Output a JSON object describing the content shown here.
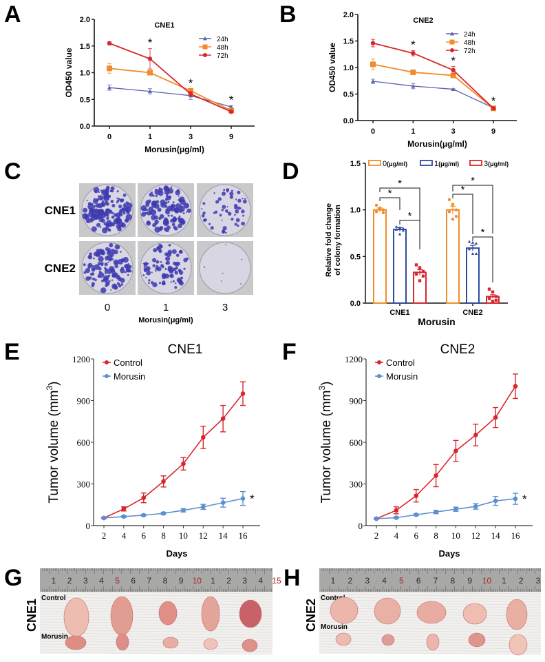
{
  "panels": {
    "A": "A",
    "B": "B",
    "C": "C",
    "D": "D",
    "E": "E",
    "F": "F",
    "G": "G",
    "H": "H"
  },
  "chart_data": [
    {
      "id": "A",
      "type": "line",
      "title": "CNE1",
      "xlabel": "Morusin(μg/ml)",
      "ylabel": "OD450 value",
      "categories": [
        "0",
        "1",
        "3",
        "9"
      ],
      "ylim": [
        0,
        2.0
      ],
      "yticks": [
        "0.0",
        "0.5",
        "1.0",
        "1.5",
        "2.0"
      ],
      "legend": "top-right",
      "series": [
        {
          "name": "24h",
          "color": "#5b62b0",
          "marker": "triangle",
          "values": [
            0.72,
            0.65,
            0.57,
            0.36
          ],
          "errors": [
            0.05,
            0.05,
            0.07,
            0.02
          ]
        },
        {
          "name": "48h",
          "color": "#f28c28",
          "marker": "square",
          "values": [
            1.08,
            1.0,
            0.66,
            0.29
          ],
          "errors": [
            0.09,
            0.03,
            0.04,
            0.03
          ]
        },
        {
          "name": "72h",
          "color": "#d7262d",
          "marker": "circle",
          "values": [
            1.55,
            1.26,
            0.6,
            0.27
          ],
          "errors": [
            0.03,
            0.19,
            0.05,
            0.02
          ]
        }
      ],
      "annotations": [
        {
          "text": "*",
          "x": "1"
        },
        {
          "text": "*",
          "x": "3"
        },
        {
          "text": "*",
          "x": "9"
        }
      ]
    },
    {
      "id": "B",
      "type": "line",
      "title": "CNE2",
      "xlabel": "Morusin(μg/ml)",
      "ylabel": "OD450 value",
      "categories": [
        "0",
        "1",
        "3",
        "9"
      ],
      "ylim": [
        0,
        2.0
      ],
      "yticks": [
        "0.0",
        "0.5",
        "1.0",
        "1.5",
        "2.0"
      ],
      "legend": "top-right",
      "series": [
        {
          "name": "24h",
          "color": "#5b62b0",
          "marker": "triangle",
          "values": [
            0.74,
            0.65,
            0.59,
            0.24
          ],
          "errors": [
            0.04,
            0.05,
            0.01,
            0.02
          ]
        },
        {
          "name": "48h",
          "color": "#f28c28",
          "marker": "square",
          "values": [
            1.06,
            0.91,
            0.85,
            0.23
          ],
          "errors": [
            0.1,
            0.03,
            0.02,
            0.02
          ]
        },
        {
          "name": "72h",
          "color": "#d7262d",
          "marker": "circle",
          "values": [
            1.46,
            1.27,
            0.95,
            0.23
          ],
          "errors": [
            0.07,
            0.05,
            0.07,
            0.02
          ]
        }
      ],
      "annotations": [
        {
          "text": "*",
          "x": "1"
        },
        {
          "text": "*",
          "x": "3"
        },
        {
          "text": "*",
          "x": "9"
        }
      ]
    },
    {
      "id": "D",
      "type": "bar",
      "title": "",
      "xlabel": "Morusin",
      "ylabel": "Relative fold change of colony formation",
      "ylabel_lines": [
        "Relative fold change",
        "of colony formation"
      ],
      "categories": [
        "CNE1",
        "CNE2"
      ],
      "ylim": [
        0,
        1.5
      ],
      "yticks": [
        "0.0",
        "0.5",
        "1.0",
        "1.5"
      ],
      "legend": "top",
      "series": [
        {
          "name": "0",
          "unit": "(μg/ml)",
          "color": "#f28c28",
          "marker": "circle",
          "values": [
            1.0,
            1.0
          ],
          "errors": [
            0.02,
            0.04
          ],
          "points": [
            [
              1.05,
              1.02,
              1.0,
              0.98,
              0.97,
              1.01
            ],
            [
              1.11,
              1.06,
              1.0,
              0.98,
              0.93,
              0.9
            ]
          ]
        },
        {
          "name": "1",
          "unit": "(μg/ml)",
          "color": "#2e4a9e",
          "marker": "triangle",
          "values": [
            0.79,
            0.59
          ],
          "errors": [
            0.02,
            0.03
          ],
          "points": [
            [
              0.82,
              0.81,
              0.8,
              0.79,
              0.78,
              0.74
            ],
            [
              0.66,
              0.65,
              0.64,
              0.58,
              0.53,
              0.53
            ]
          ]
        },
        {
          "name": "3",
          "unit": "(μg/ml)",
          "color": "#d7262d",
          "marker": "square",
          "values": [
            0.33,
            0.07
          ],
          "errors": [
            0.03,
            0.02
          ],
          "points": [
            [
              0.41,
              0.38,
              0.34,
              0.31,
              0.29,
              0.24
            ],
            [
              0.15,
              0.12,
              0.07,
              0.05,
              0.03,
              0.02
            ]
          ]
        }
      ],
      "annotations": [
        {
          "text": "*",
          "from": "0",
          "to": "1",
          "group": "CNE1"
        },
        {
          "text": "*",
          "from": "0",
          "to": "3",
          "group": "CNE1"
        },
        {
          "text": "*",
          "from": "1",
          "to": "3",
          "group": "CNE1"
        },
        {
          "text": "*",
          "from": "0",
          "to": "1",
          "group": "CNE2"
        },
        {
          "text": "*",
          "from": "0",
          "to": "3",
          "group": "CNE2"
        },
        {
          "text": "*",
          "from": "1",
          "to": "3",
          "group": "CNE2"
        }
      ]
    },
    {
      "id": "E",
      "type": "line",
      "title": "CNE1",
      "xlabel": "Days",
      "ylabel": "Tumor volume (mm",
      "ylabel_sup": "3",
      "ylabel_close": ")",
      "x": [
        2,
        4,
        6,
        8,
        10,
        12,
        14,
        16
      ],
      "xticks": [
        "2",
        "4",
        "6",
        "8",
        "10",
        "12",
        "14",
        "16"
      ],
      "ylim": [
        0,
        1200
      ],
      "yticks": [
        "0",
        "300",
        "600",
        "900",
        "1200"
      ],
      "legend": "top-left",
      "series": [
        {
          "name": "Control",
          "color": "#d7262d",
          "values": [
            55,
            120,
            200,
            318,
            445,
            635,
            770,
            950
          ],
          "errors": [
            5,
            15,
            35,
            40,
            45,
            80,
            95,
            85
          ]
        },
        {
          "name": "Morusin",
          "color": "#5b8fcf",
          "values": [
            55,
            65,
            75,
            88,
            110,
            135,
            165,
            195
          ],
          "errors": [
            5,
            5,
            6,
            8,
            12,
            18,
            32,
            50
          ]
        }
      ],
      "annotations": [
        {
          "text": "*",
          "x": 16,
          "series": "Morusin"
        }
      ]
    },
    {
      "id": "F",
      "type": "line",
      "title": "CNE2",
      "xlabel": "Days",
      "ylabel": "Tumor volume (mm",
      "ylabel_sup": "3",
      "ylabel_close": ")",
      "x": [
        2,
        4,
        6,
        8,
        10,
        12,
        14,
        16
      ],
      "xticks": [
        "2",
        "4",
        "6",
        "8",
        "10",
        "12",
        "14",
        "16"
      ],
      "ylim": [
        0,
        1200
      ],
      "yticks": [
        "0",
        "300",
        "600",
        "900",
        "1200"
      ],
      "legend": "top-left",
      "series": [
        {
          "name": "Control",
          "color": "#d7262d",
          "values": [
            50,
            110,
            215,
            360,
            538,
            652,
            778,
            1003
          ],
          "errors": [
            5,
            25,
            45,
            80,
            75,
            78,
            72,
            88
          ]
        },
        {
          "name": "Morusin",
          "color": "#5b8fcf",
          "values": [
            50,
            57,
            78,
            98,
            118,
            138,
            178,
            193
          ],
          "errors": [
            5,
            5,
            6,
            12,
            15,
            20,
            32,
            40
          ]
        }
      ],
      "annotations": [
        {
          "text": "*",
          "x": 16,
          "series": "Morusin"
        }
      ]
    }
  ],
  "colony": {
    "rows": [
      "CNE1",
      "CNE2"
    ],
    "cols": [
      "0",
      "1",
      "3"
    ],
    "xlabel": "Morusin(μg/ml)",
    "density": [
      [
        0.85,
        0.75,
        0.3
      ],
      [
        0.7,
        0.5,
        0.02
      ]
    ]
  },
  "tumors": {
    "G": {
      "cell_line": "CNE1",
      "control_label": "Control",
      "morusin_label": "Morusin",
      "ruler": [
        "1",
        "2",
        "3",
        "4",
        "5",
        "6",
        "7",
        "8",
        "9",
        "10",
        "1",
        "2",
        "3",
        "4",
        "15"
      ]
    },
    "H": {
      "cell_line": "CNE2",
      "control_label": "Control",
      "morusin_label": "Morusin",
      "ruler": [
        "1",
        "2",
        "3",
        "4",
        "5",
        "6",
        "7",
        "8",
        "9",
        "10",
        "1",
        "2",
        "3"
      ]
    }
  }
}
